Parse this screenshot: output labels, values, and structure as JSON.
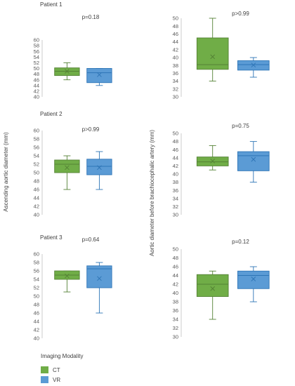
{
  "colors": {
    "ct": "#70ad47",
    "vr": "#5b9bd5",
    "ctStroke": "#548235",
    "vrStroke": "#2e75b6"
  },
  "axis_labels": {
    "left": "Ascending aortic diameter (mm)",
    "right": "Aortic diameter before brachiocephalic artery (mm)"
  },
  "legend": {
    "title": "Imaging Modality",
    "items": [
      {
        "label": "CT",
        "key": "ct"
      },
      {
        "label": "VR",
        "key": "vr"
      }
    ]
  },
  "chart_data": [
    {
      "type": "boxplot",
      "title": "Patient 1",
      "pvalue": "p=0.18",
      "ylim": [
        40,
        60
      ],
      "ticks": [
        40,
        42,
        44,
        46,
        48,
        50,
        52,
        54,
        56,
        58,
        60
      ],
      "series": [
        {
          "name": "CT",
          "min": 46,
          "q1": 47.5,
          "median": 49,
          "q3": 50.2,
          "max": 52,
          "mean": 49
        },
        {
          "name": "VR",
          "min": 44,
          "q1": 45,
          "median": 48.5,
          "q3": 50,
          "max": 50,
          "mean": 47.8
        }
      ]
    },
    {
      "type": "boxplot",
      "title": "",
      "pvalue": "p>0.99",
      "ylim": [
        30,
        50
      ],
      "ticks": [
        30,
        32,
        34,
        36,
        38,
        40,
        42,
        44,
        46,
        48,
        50
      ],
      "series": [
        {
          "name": "CT",
          "min": 34,
          "q1": 37,
          "median": 38.2,
          "q3": 45,
          "max": 50,
          "mean": 40.2
        },
        {
          "name": "VR",
          "min": 35,
          "q1": 36.8,
          "median": 38.2,
          "q3": 39.2,
          "max": 40,
          "mean": 38.1
        }
      ]
    },
    {
      "type": "boxplot",
      "title": "Patient 2",
      "pvalue": "p>0.99",
      "ylim": [
        40,
        60
      ],
      "ticks": [
        40,
        42,
        44,
        46,
        48,
        50,
        52,
        54,
        56,
        58,
        60
      ],
      "series": [
        {
          "name": "CT",
          "min": 46,
          "q1": 50,
          "median": 52,
          "q3": 53,
          "max": 54,
          "mean": 51.2
        },
        {
          "name": "VR",
          "min": 46,
          "q1": 49.5,
          "median": 51.5,
          "q3": 53.2,
          "max": 55,
          "mean": 51.2
        }
      ]
    },
    {
      "type": "boxplot",
      "title": "",
      "pvalue": "p=0.75",
      "ylim": [
        30,
        50
      ],
      "ticks": [
        30,
        32,
        34,
        36,
        38,
        40,
        42,
        44,
        46,
        48,
        50
      ],
      "series": [
        {
          "name": "CT",
          "min": 41,
          "q1": 42,
          "median": 43,
          "q3": 44.2,
          "max": 47,
          "mean": 43.2
        },
        {
          "name": "VR",
          "min": 38,
          "q1": 40.8,
          "median": 44.5,
          "q3": 45.5,
          "max": 48,
          "mean": 43.6
        }
      ]
    },
    {
      "type": "boxplot",
      "title": "Patient 3",
      "pvalue": "p=0.64",
      "ylim": [
        40,
        60
      ],
      "ticks": [
        40,
        42,
        44,
        46,
        48,
        50,
        52,
        54,
        56,
        58,
        60
      ],
      "series": [
        {
          "name": "CT",
          "min": 51,
          "q1": 54,
          "median": 55,
          "q3": 56,
          "max": 56,
          "mean": 54.8
        },
        {
          "name": "VR",
          "min": 46,
          "q1": 52,
          "median": 56.5,
          "q3": 57.2,
          "max": 58,
          "mean": 54.2
        }
      ]
    },
    {
      "type": "boxplot",
      "title": "",
      "pvalue": "p=0.12",
      "ylim": [
        30,
        50
      ],
      "ticks": [
        30,
        32,
        34,
        36,
        38,
        40,
        42,
        44,
        46,
        48,
        50
      ],
      "series": [
        {
          "name": "CT",
          "min": 34,
          "q1": 39.2,
          "median": 42,
          "q3": 44.2,
          "max": 45,
          "mean": 41
        },
        {
          "name": "VR",
          "min": 38,
          "q1": 41,
          "median": 44,
          "q3": 45,
          "max": 46,
          "mean": 43.2
        }
      ]
    }
  ]
}
